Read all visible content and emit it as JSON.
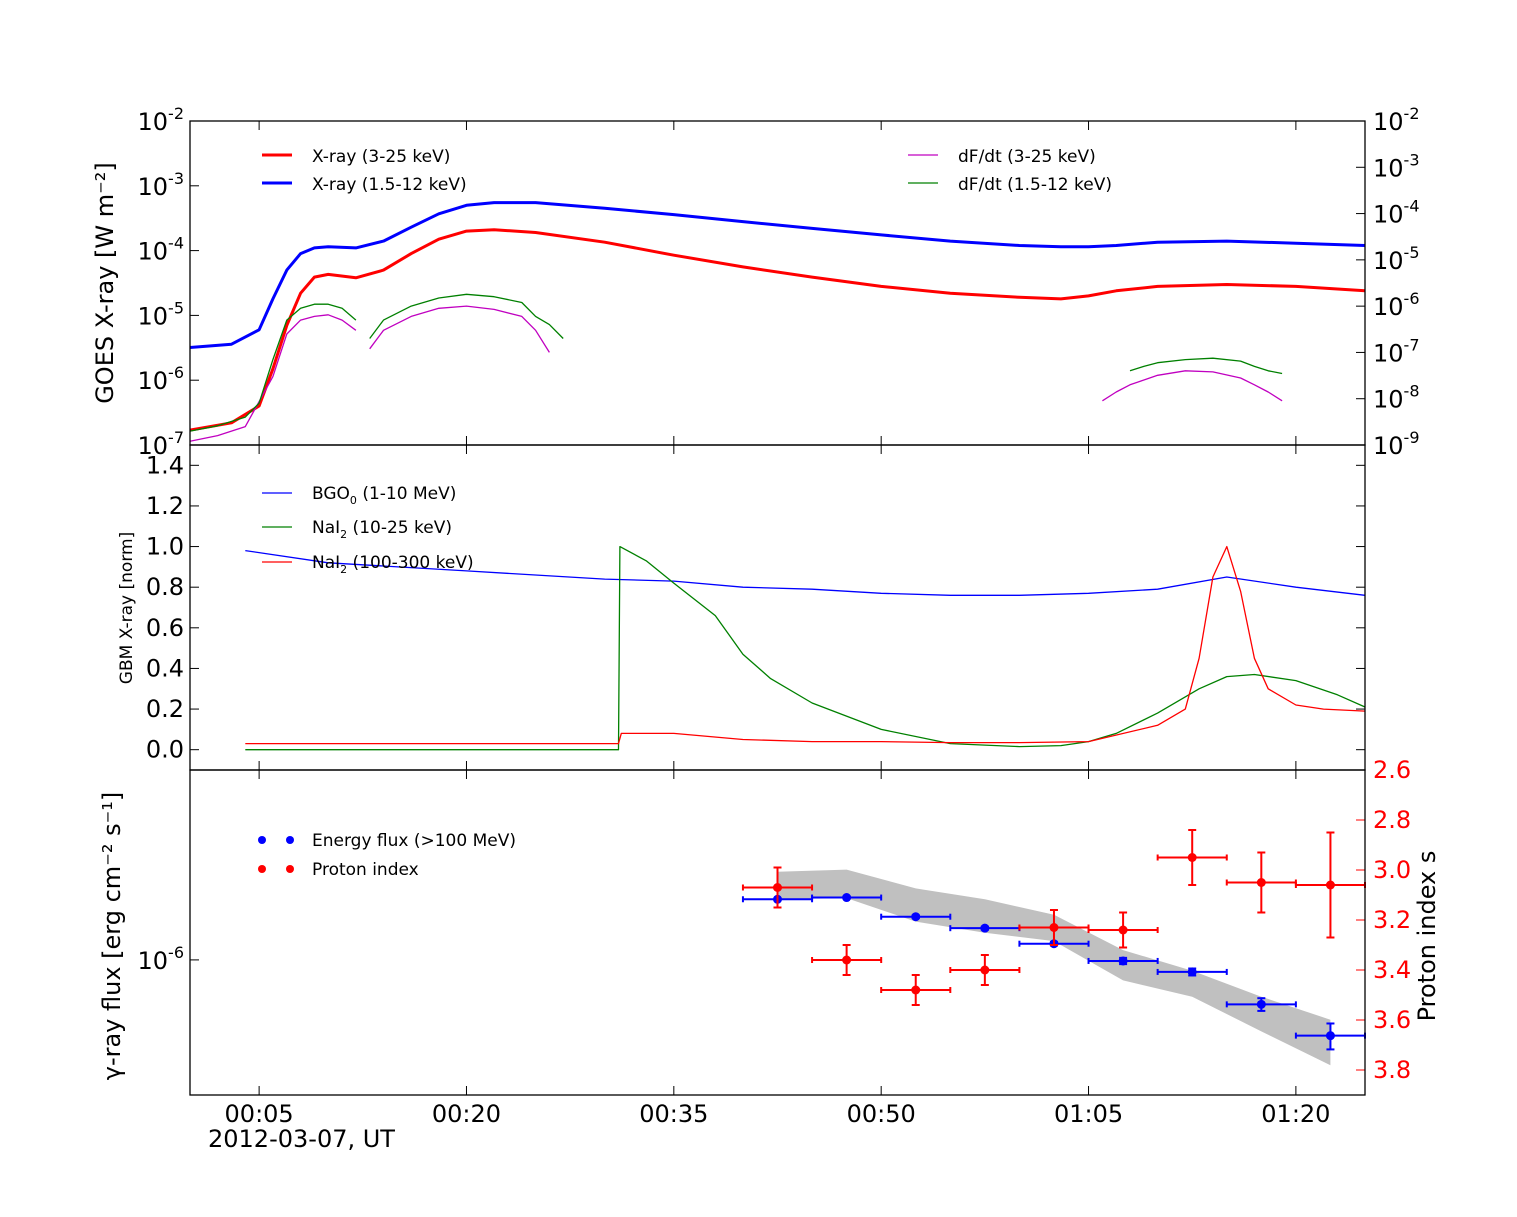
{
  "chart_data": {
    "type": "multi-panel",
    "x_axis": {
      "range_min": [
        0,
        85
      ],
      "tick_minutes": [
        5,
        20,
        35,
        50,
        65,
        80
      ],
      "tick_labels": [
        "00:05",
        "00:20",
        "00:35",
        "00:50",
        "01:05",
        "01:20"
      ],
      "date_label": "2012-03-07, UT"
    },
    "panels": [
      {
        "id": "goes",
        "type": "line",
        "scale": "log",
        "ylabel": "GOES X-ray [W m⁻²]",
        "ylim": [
          1e-07,
          0.01
        ],
        "left_tick_labels": [
          "10-7",
          "10-6",
          "10-5",
          "10-4",
          "10-3",
          "10-2"
        ],
        "right_ylim": [
          1e-09,
          0.01
        ],
        "right_tick_labels": [
          "10-9",
          "10-8",
          "10-7",
          "10-6",
          "10-5",
          "10-4",
          "10-3",
          "10-2"
        ],
        "legend_left": [
          "X-ray (3-25 keV)",
          "X-ray (1.5-12 keV)"
        ],
        "legend_right": [
          "dF/dt (3-25 keV)",
          "dF/dt (1.5-12 keV)"
        ],
        "series": [
          {
            "name": "X-ray (3-25 keV)",
            "color": "#ff0000",
            "axis": "left",
            "x": [
              0,
              3,
              5,
              6,
              7,
              8,
              9,
              10,
              12,
              14,
              16,
              18,
              20,
              22,
              25,
              30,
              35,
              40,
              45,
              50,
              55,
              60,
              63,
              65,
              67,
              70,
              75,
              80,
              85
            ],
            "y": [
              1.7e-07,
              2.2e-07,
              4e-07,
              1.5e-06,
              7e-06,
              2.2e-05,
              3.9e-05,
              4.3e-05,
              3.8e-05,
              5e-05,
              9e-05,
              0.00015,
              0.0002,
              0.00021,
              0.00019,
              0.000135,
              8.5e-05,
              5.6e-05,
              3.9e-05,
              2.8e-05,
              2.2e-05,
              1.9e-05,
              1.8e-05,
              2e-05,
              2.4e-05,
              2.8e-05,
              3e-05,
              2.8e-05,
              2.4e-05
            ]
          },
          {
            "name": "X-ray (1.5-12 keV)",
            "color": "#0000ff",
            "axis": "left",
            "x": [
              0,
              3,
              5,
              6,
              7,
              8,
              9,
              10,
              12,
              14,
              16,
              18,
              20,
              22,
              25,
              30,
              35,
              40,
              45,
              50,
              55,
              60,
              63,
              65,
              67,
              70,
              75,
              80,
              85
            ],
            "y": [
              3.2e-06,
              3.6e-06,
              6e-06,
              1.8e-05,
              5e-05,
              9e-05,
              0.00011,
              0.000115,
              0.00011,
              0.00014,
              0.00023,
              0.00037,
              0.0005,
              0.00055,
              0.00055,
              0.00045,
              0.00036,
              0.00028,
              0.00022,
              0.000175,
              0.00014,
              0.00012,
              0.000115,
              0.000115,
              0.00012,
              0.000135,
              0.00014,
              0.00013,
              0.00012
            ]
          },
          {
            "name": "dF/dt (3-25 keV)",
            "color": "#c000c0",
            "axis": "right",
            "segments": [
              {
                "x": [
                  0,
                  2,
                  4,
                  6,
                  7,
                  8,
                  9,
                  10,
                  11,
                  12
                ],
                "y": [
                  1.2e-09,
                  1.6e-09,
                  2.5e-09,
                  3e-08,
                  2.5e-07,
                  5e-07,
                  6e-07,
                  6.5e-07,
                  5e-07,
                  3e-07
                ]
              },
              {
                "x": [
                  13,
                  14,
                  16,
                  18,
                  20,
                  22,
                  24,
                  25,
                  26
                ],
                "y": [
                  1.2e-07,
                  3e-07,
                  6e-07,
                  9e-07,
                  1e-06,
                  8.5e-07,
                  6e-07,
                  3e-07,
                  1e-07
                ]
              },
              {
                "x": [
                  66,
                  67,
                  68,
                  70,
                  72,
                  74,
                  76,
                  77,
                  78,
                  79
                ],
                "y": [
                  9e-09,
                  1.4e-08,
                  2e-08,
                  3.2e-08,
                  4e-08,
                  3.8e-08,
                  2.8e-08,
                  2e-08,
                  1.4e-08,
                  9e-09
                ]
              }
            ]
          },
          {
            "name": "dF/dt (1.5-12 keV)",
            "color": "#008000",
            "axis": "right",
            "segments": [
              {
                "x": [
                  0,
                  2,
                  4,
                  5,
                  6,
                  7,
                  8,
                  9,
                  10,
                  11,
                  12
                ],
                "y": [
                  2e-09,
                  2.6e-09,
                  4e-09,
                  8e-09,
                  7e-08,
                  5e-07,
                  9e-07,
                  1.1e-06,
                  1.1e-06,
                  9e-07,
                  5e-07
                ]
              },
              {
                "x": [
                  13,
                  14,
                  16,
                  18,
                  20,
                  22,
                  24,
                  25,
                  26,
                  27
                ],
                "y": [
                  2e-07,
                  5e-07,
                  1e-06,
                  1.5e-06,
                  1.8e-06,
                  1.6e-06,
                  1.2e-06,
                  6e-07,
                  4e-07,
                  2e-07
                ]
              },
              {
                "x": [
                  68,
                  69,
                  70,
                  72,
                  74,
                  76,
                  77,
                  78,
                  79
                ],
                "y": [
                  4e-08,
                  5e-08,
                  6e-08,
                  7e-08,
                  7.5e-08,
                  6.5e-08,
                  5e-08,
                  4e-08,
                  3.5e-08
                ]
              }
            ]
          }
        ]
      },
      {
        "id": "gbm",
        "type": "line",
        "scale": "linear",
        "ylabel": "GBM X-ray [norm]",
        "ylim": [
          -0.1,
          1.5
        ],
        "ticks": [
          0.0,
          0.2,
          0.4,
          0.6,
          0.8,
          1.0,
          1.2,
          1.4
        ],
        "tick_labels": [
          "0.0",
          "0.2",
          "0.4",
          "0.6",
          "0.8",
          "1.0",
          "1.2",
          "1.4"
        ],
        "legend": [
          {
            "name": "BGO",
            "sub": "0",
            "rest": " (1-10 MeV)"
          },
          {
            "name": "NaI",
            "sub": "2",
            "rest": " (10-25 keV)"
          },
          {
            "name": "NaI",
            "sub": "2",
            "rest": " (100-300 keV)"
          }
        ],
        "series": [
          {
            "name": "BGO0 (1-10 MeV)",
            "color": "#0000ff",
            "x": [
              4,
              10,
              20,
              30,
              35,
              40,
              45,
              50,
              55,
              60,
              65,
              70,
              75,
              80,
              85
            ],
            "y": [
              0.98,
              0.92,
              0.88,
              0.84,
              0.83,
              0.8,
              0.79,
              0.77,
              0.76,
              0.76,
              0.77,
              0.79,
              0.85,
              0.8,
              0.76
            ]
          },
          {
            "name": "NaI2 (10-25 keV)",
            "color": "#008000",
            "x": [
              4,
              10,
              20,
              31,
              31.1,
              33,
              35,
              38,
              40,
              42,
              45,
              50,
              55,
              60,
              63,
              65,
              67,
              70,
              73,
              75,
              77,
              80,
              83,
              85
            ],
            "y": [
              0.0,
              0.0,
              0.0,
              0.0,
              1.0,
              0.93,
              0.82,
              0.66,
              0.47,
              0.35,
              0.23,
              0.1,
              0.03,
              0.015,
              0.02,
              0.04,
              0.08,
              0.18,
              0.3,
              0.36,
              0.37,
              0.34,
              0.27,
              0.21
            ]
          },
          {
            "name": "NaI2 (100-300 keV)",
            "color": "#ff0000",
            "x": [
              4,
              20,
              31,
              31.2,
              35,
              40,
              45,
              50,
              55,
              60,
              65,
              70,
              72,
              73,
              74,
              75,
              76,
              77,
              78,
              80,
              82,
              85
            ],
            "y": [
              0.03,
              0.03,
              0.03,
              0.08,
              0.08,
              0.05,
              0.04,
              0.04,
              0.035,
              0.035,
              0.04,
              0.12,
              0.2,
              0.45,
              0.85,
              1.0,
              0.78,
              0.45,
              0.3,
              0.22,
              0.2,
              0.19
            ]
          }
        ]
      },
      {
        "id": "gamma",
        "type": "errorbar",
        "scale": "log",
        "ylabel": "γ-ray flux [erg cm⁻² s⁻¹]",
        "ylim": [
          2.7e-07,
          6.3e-06
        ],
        "left_tick_labels": [
          "10-6"
        ],
        "right_ylabel": "Proton index s",
        "right_ylim": [
          2.6,
          3.9
        ],
        "right_ticks": [
          2.6,
          2.8,
          3.0,
          3.2,
          3.4,
          3.6,
          3.8
        ],
        "right_tick_labels": [
          "2.6",
          "2.8",
          "3.0",
          "3.2",
          "3.4",
          "3.6",
          "3.8"
        ],
        "legend": [
          "Energy flux (>100 MeV)",
          "Proton index"
        ],
        "band": {
          "x": [
            42.5,
            47.5,
            52.5,
            57.5,
            62.5,
            67.5,
            72.5,
            77.5,
            82.5
          ],
          "upper": [
            2.35e-06,
            2.4e-06,
            2e-06,
            1.8e-06,
            1.55e-06,
            1.1e-06,
            9e-07,
            7e-07,
            5.6e-07
          ],
          "lower": [
            1.8e-06,
            1.82e-06,
            1.45e-06,
            1.3e-06,
            1.2e-06,
            8.2e-07,
            7e-07,
            5e-07,
            3.6e-07
          ]
        },
        "energy_flux": {
          "color": "#0000ff",
          "x": [
            42.5,
            47.5,
            52.5,
            57.5,
            62.5,
            67.5,
            72.5,
            77.5,
            82.5
          ],
          "xerr": 2.5,
          "y": [
            1.8e-06,
            1.83e-06,
            1.52e-06,
            1.36e-06,
            1.17e-06,
            9.9e-07,
            8.9e-07,
            6.5e-07,
            4.8e-07
          ],
          "yerr": [
            2e-08,
            2e-08,
            2e-08,
            2e-08,
            2e-08,
            3e-08,
            3e-08,
            4e-08,
            6e-08
          ]
        },
        "proton_index": {
          "color": "#ff0000",
          "x": [
            42.5,
            47.5,
            52.5,
            57.5,
            62.5,
            67.5,
            72.5,
            77.5,
            82.5
          ],
          "xerr": 2.5,
          "y": [
            3.07,
            3.36,
            3.48,
            3.4,
            3.23,
            3.24,
            2.95,
            3.05,
            3.06
          ],
          "yerr": [
            0.08,
            0.06,
            0.06,
            0.06,
            0.07,
            0.07,
            0.11,
            0.12,
            0.21
          ]
        }
      }
    ]
  }
}
